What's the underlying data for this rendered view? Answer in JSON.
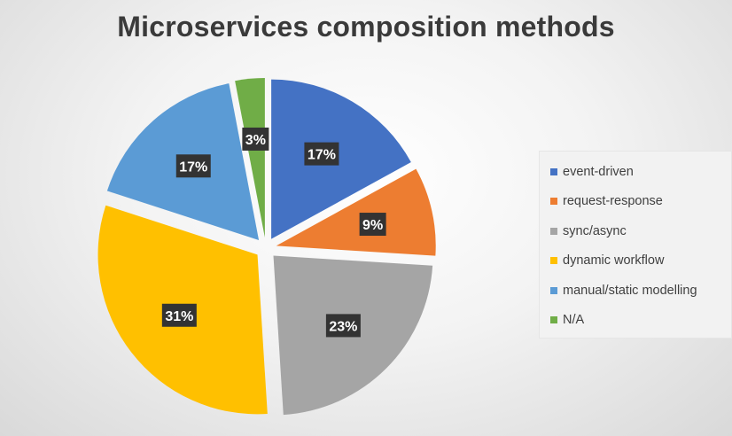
{
  "chart_data": {
    "type": "pie",
    "title": "Microservices composition methods",
    "categories": [
      "event-driven",
      "request-response",
      "sync/async",
      "dynamic workflow",
      "manual/static modelling",
      "N/A"
    ],
    "values": [
      17,
      9,
      23,
      31,
      17,
      3
    ],
    "data_labels": [
      "17%",
      "9%",
      "23%",
      "31%",
      "17%",
      "3%"
    ],
    "colors": [
      "#4472C4",
      "#ED7D31",
      "#A5A5A5",
      "#FFC000",
      "#5B9BD5",
      "#70AD47"
    ],
    "legend_position": "right",
    "exploded": true
  }
}
